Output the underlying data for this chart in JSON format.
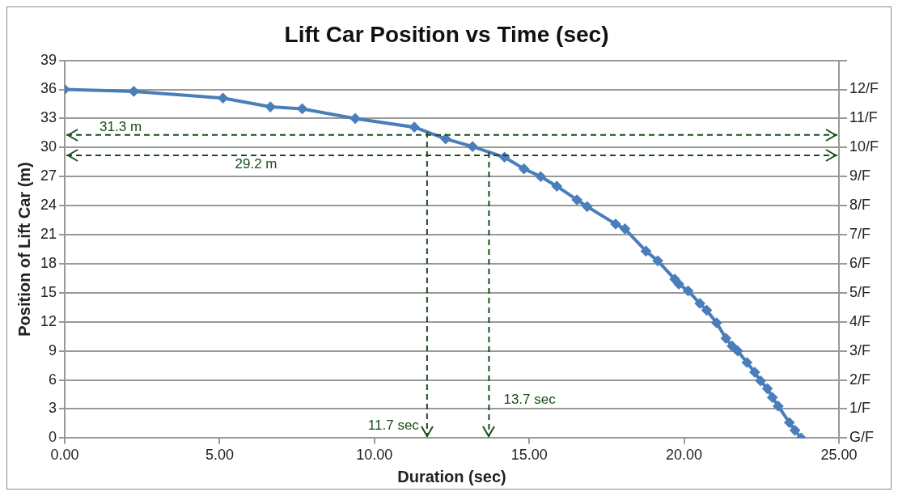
{
  "chart_data": {
    "type": "line",
    "title": "Lift Car Position vs Time (sec)",
    "xlabel": "Duration (sec)",
    "ylabel": "Position of Lift Car (m)",
    "x": [
      0,
      2.23,
      5.11,
      6.64,
      7.67,
      9.38,
      11.29,
      12.3,
      13.17,
      14.2,
      14.83,
      15.37,
      15.89,
      16.54,
      16.87,
      17.79,
      18.09,
      18.77,
      19.15,
      19.7,
      19.83,
      20.13,
      20.51,
      20.73,
      21.05,
      21.35,
      21.55,
      21.73,
      22.03,
      22.28,
      22.47,
      22.69,
      22.85,
      23.04,
      23.4,
      23.58,
      23.78
    ],
    "series": [
      {
        "color": "#4a7ebb",
        "values": [
          36.0,
          35.8,
          35.1,
          34.2,
          34.0,
          33.0,
          32.1,
          30.9,
          30.1,
          29.0,
          27.8,
          27.0,
          26.0,
          24.6,
          23.9,
          22.1,
          21.6,
          19.3,
          18.3,
          16.4,
          15.9,
          15.2,
          13.9,
          13.2,
          11.9,
          10.3,
          9.5,
          9.0,
          7.8,
          6.8,
          5.9,
          5.1,
          4.2,
          3.3,
          1.6,
          0.8,
          0
        ]
      }
    ],
    "marker": "diamond",
    "line_style": "solid",
    "grid": "y",
    "legend": false,
    "xlim": [
      0,
      25
    ],
    "xticks": [
      {
        "value": 0,
        "label": "0.00"
      },
      {
        "value": 5,
        "label": "5.00"
      },
      {
        "value": 10,
        "label": "10.00"
      },
      {
        "value": 15,
        "label": "15.00"
      },
      {
        "value": 20,
        "label": "20.00"
      },
      {
        "value": 25,
        "label": "25.00"
      }
    ],
    "ylim": [
      0,
      39
    ],
    "yticks": [
      0,
      3,
      6,
      9,
      12,
      15,
      18,
      21,
      24,
      27,
      30,
      33,
      36,
      39
    ],
    "y2lim": [
      0,
      13
    ],
    "y2ticks": [
      {
        "value": 0,
        "label": "G/F"
      },
      {
        "value": 1,
        "label": "1/F"
      },
      {
        "value": 2,
        "label": "2/F"
      },
      {
        "value": 3,
        "label": "3/F"
      },
      {
        "value": 4,
        "label": "4/F"
      },
      {
        "value": 5,
        "label": "5/F"
      },
      {
        "value": 6,
        "label": "6/F"
      },
      {
        "value": 7,
        "label": "7/F"
      },
      {
        "value": 8,
        "label": "8/F"
      },
      {
        "value": 9,
        "label": "9/F"
      },
      {
        "value": 10,
        "label": "10/F"
      },
      {
        "value": 11,
        "label": "11/F"
      },
      {
        "value": 12,
        "label": "12/F"
      },
      {
        "value": 13,
        "label": null
      }
    ],
    "ref_lines": [
      {
        "axis": "y",
        "value": 31.3,
        "label": "31.3 m",
        "color": "#1a4d1a",
        "line_style": "dashed"
      },
      {
        "axis": "y",
        "value": 29.2,
        "label": "29.2 m",
        "color": "#1a4d1a",
        "line_style": "dashed"
      },
      {
        "axis": "x",
        "value": 11.7,
        "label": "11.7 sec",
        "color": "#1a4d1a",
        "line_style": "dashed"
      },
      {
        "axis": "x",
        "value": 13.7,
        "label": "13.7 sec",
        "color": "#1a4d1a",
        "line_style": "dashed"
      }
    ]
  }
}
